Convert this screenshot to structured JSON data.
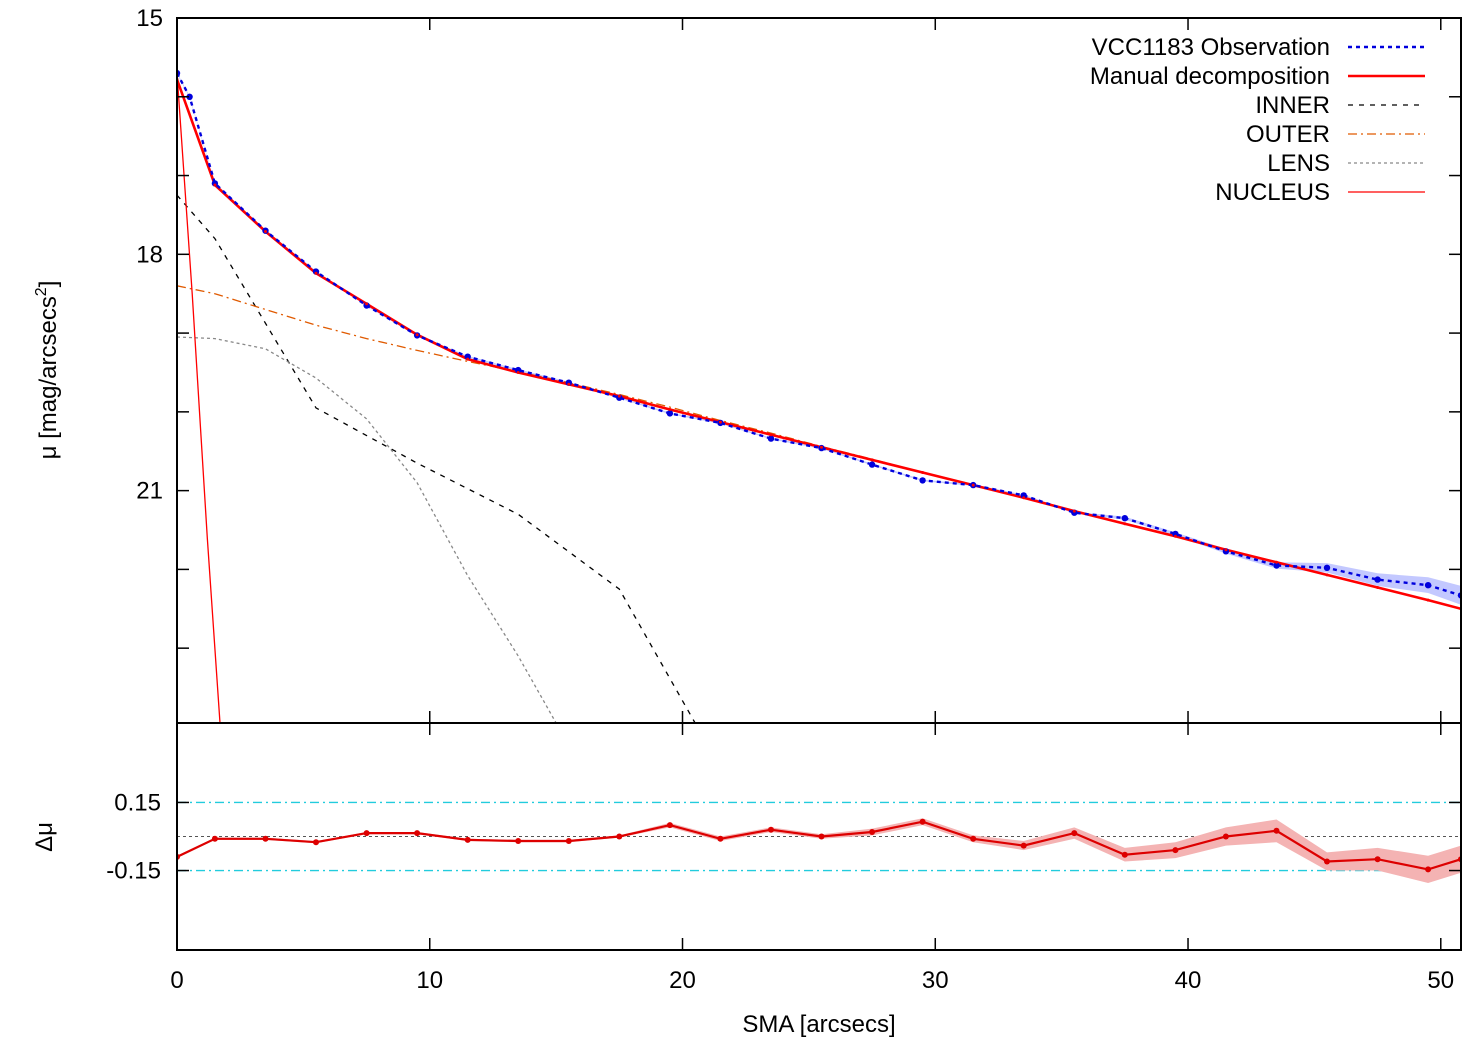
{
  "chart_data": [
    {
      "type": "line",
      "panel": "profile",
      "xlabel": "",
      "ylabel": "μ [mag/arcsecs²]",
      "ylabel_parts": [
        "μ [mag/arcsecs",
        "2",
        "]"
      ],
      "xlim": [
        0,
        50.8
      ],
      "ylim": [
        15,
        23.95
      ],
      "y_inverted": true,
      "xticks": [
        0,
        10,
        20,
        30,
        40,
        50
      ],
      "yticks": [
        15,
        18,
        21
      ],
      "y_minor_ticks": [
        16,
        17,
        19,
        20,
        22,
        23
      ],
      "grid": false,
      "legend_position": "top-right",
      "series": [
        {
          "name": "VCC1183 Observation",
          "color": "#0000dd",
          "style": "dotted-with-points",
          "x": [
            0,
            0.5,
            1.5,
            3.5,
            5.5,
            7.5,
            9.5,
            11.5,
            13.5,
            15.5,
            17.5,
            19.5,
            21.5,
            23.5,
            25.5,
            27.5,
            29.5,
            31.5,
            33.5,
            35.5,
            37.5,
            39.5,
            41.5,
            43.5,
            45.5,
            47.5,
            49.5,
            50.8
          ],
          "y": [
            15.7,
            16.0,
            17.1,
            17.7,
            18.22,
            18.65,
            19.03,
            19.3,
            19.47,
            19.63,
            19.82,
            20.02,
            20.14,
            20.34,
            20.46,
            20.67,
            20.87,
            20.93,
            21.06,
            21.28,
            21.35,
            21.55,
            21.77,
            21.95,
            21.98,
            22.13,
            22.2,
            22.33
          ],
          "err": [
            0.01,
            0.01,
            0.01,
            0.01,
            0.01,
            0.01,
            0.01,
            0.01,
            0.01,
            0.01,
            0.01,
            0.01,
            0.01,
            0.01,
            0.01,
            0.01,
            0.01,
            0.01,
            0.01,
            0.01,
            0.02,
            0.02,
            0.03,
            0.04,
            0.06,
            0.08,
            0.1,
            0.12
          ]
        },
        {
          "name": "Manual decomposition",
          "color": "#ff0000",
          "style": "solid-thick",
          "x": [
            0,
            1.5,
            3.5,
            5.5,
            7.5,
            9.5,
            11.5,
            13.5,
            15.5,
            17.5,
            19.5,
            21.5,
            23.5,
            25.5,
            27.5,
            29.5,
            31.5,
            33.5,
            35.5,
            37.5,
            39.5,
            41.5,
            43.5,
            45.5,
            47.5,
            49.5,
            50.8
          ],
          "y": [
            15.78,
            17.12,
            17.71,
            18.24,
            18.63,
            19.02,
            19.33,
            19.5,
            19.65,
            19.8,
            19.97,
            20.13,
            20.29,
            20.45,
            20.61,
            20.77,
            20.93,
            21.09,
            21.26,
            21.42,
            21.58,
            21.75,
            21.91,
            22.07,
            22.23,
            22.39,
            22.5
          ]
        },
        {
          "name": "INNER",
          "color": "#000000",
          "style": "dashed",
          "x": [
            0,
            1.5,
            5.5,
            9.5,
            13.5,
            17.5,
            20.5
          ],
          "y": [
            17.25,
            17.8,
            19.95,
            20.65,
            21.3,
            22.25,
            23.95
          ]
        },
        {
          "name": "OUTER",
          "color": "#e05a00",
          "style": "dash-dot",
          "x": [
            0,
            1.5,
            3.5,
            5.5,
            7.5,
            9.5,
            11.5,
            13.5,
            15.5,
            17.5,
            19.5,
            21.5,
            23.5,
            25.5,
            27.5,
            29.5,
            31.5,
            33.5,
            35.5,
            37.5,
            39.5,
            41.5,
            43.5,
            45.5,
            47.5,
            49.5,
            50.8
          ],
          "y": [
            18.4,
            18.5,
            18.7,
            18.9,
            19.07,
            19.22,
            19.36,
            19.49,
            19.63,
            19.78,
            19.94,
            20.11,
            20.27,
            20.44,
            20.6,
            20.77,
            20.93,
            21.09,
            21.26,
            21.42,
            21.58,
            21.75,
            21.91,
            22.07,
            22.23,
            22.39,
            22.5
          ]
        },
        {
          "name": "LENS",
          "color": "#888888",
          "style": "dotted",
          "x": [
            0,
            1.5,
            3.5,
            5.5,
            7.5,
            9.5,
            11.5,
            13.5,
            15
          ],
          "y": [
            19.05,
            19.07,
            19.2,
            19.57,
            20.09,
            20.9,
            22.08,
            23.1,
            23.95
          ]
        },
        {
          "name": "NUCLEUS",
          "color": "#ff0000",
          "style": "solid-thin",
          "x": [
            0,
            0.6,
            1.2,
            1.7
          ],
          "y": [
            15.7,
            18.5,
            21.6,
            23.95
          ]
        }
      ]
    },
    {
      "type": "line",
      "panel": "residuals",
      "xlabel": "SMA [arcsecs]",
      "ylabel": "Δμ",
      "xlim": [
        0,
        50.8
      ],
      "ylim": [
        -0.5,
        0.5
      ],
      "xticks": [
        0,
        10,
        20,
        30,
        40,
        50
      ],
      "yticks": [
        0.15,
        -0.15
      ],
      "ytick_labels": [
        "0.15",
        "-0.15"
      ],
      "grid": false,
      "reference_lines": [
        {
          "y": 0.15,
          "color": "#22ccdd",
          "style": "dash-dot"
        },
        {
          "y": -0.15,
          "color": "#22ccdd",
          "style": "dash-dot"
        },
        {
          "y": 0,
          "color": "#555555",
          "style": "dotted"
        }
      ],
      "series": [
        {
          "color": "#dd0000",
          "fill_color": "#f4b3b3",
          "x": [
            0,
            1.5,
            3.5,
            5.5,
            7.5,
            9.5,
            11.5,
            13.5,
            15.5,
            17.5,
            19.5,
            21.5,
            23.5,
            25.5,
            27.5,
            29.5,
            31.5,
            33.5,
            35.5,
            37.5,
            39.5,
            41.5,
            43.5,
            45.5,
            47.5,
            49.5,
            50.8
          ],
          "y": [
            -0.09,
            -0.01,
            -0.01,
            -0.025,
            0.015,
            0.015,
            -0.015,
            -0.02,
            -0.02,
            0.0,
            0.05,
            -0.01,
            0.03,
            0.0,
            0.02,
            0.065,
            -0.01,
            -0.04,
            0.015,
            -0.08,
            -0.06,
            0.0,
            0.025,
            -0.11,
            -0.1,
            -0.145,
            -0.1
          ],
          "err": [
            0.005,
            0.005,
            0.005,
            0.005,
            0.005,
            0.005,
            0.005,
            0.005,
            0.005,
            0.005,
            0.01,
            0.01,
            0.01,
            0.01,
            0.015,
            0.015,
            0.015,
            0.02,
            0.025,
            0.03,
            0.035,
            0.04,
            0.05,
            0.04,
            0.05,
            0.06,
            0.06
          ]
        }
      ]
    }
  ]
}
